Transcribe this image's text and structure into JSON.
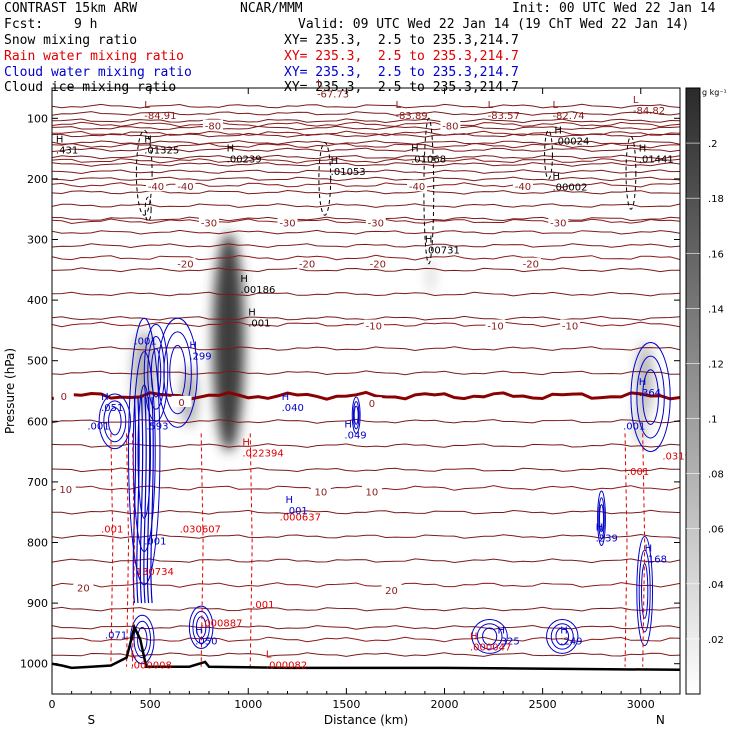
{
  "header": {
    "model": "CONTRAST 15km ARW",
    "org": "NCAR/MMM",
    "init": "Init: 00 UTC Wed 22 Jan 14",
    "fcst_label": "Fcst:",
    "fcst_value": "9 h",
    "valid": "Valid: 09 UTC Wed 22 Jan 14 (19 ChT Wed 22 Jan 14)"
  },
  "fields": [
    {
      "name": "Snow mixing ratio",
      "xy": "XY= 235.3,  2.5 to 235.3,214.7",
      "color": "#000000"
    },
    {
      "name": "Rain water mixing ratio",
      "xy": "XY= 235.3,  2.5 to 235.3,214.7",
      "color": "#e00000"
    },
    {
      "name": "Cloud water mixing ratio",
      "xy": "XY= 235.3,  2.5 to 235.3,214.7",
      "color": "#0000cc"
    },
    {
      "name": "Cloud ice mixing ratio",
      "xy": "XY= 235.3,  2.5 to 235.3,214.7",
      "color": "#000000"
    }
  ],
  "chart_data": {
    "type": "heatmap",
    "subtype": "vertical cross-section",
    "xlabel": "Distance (km)",
    "ylabel": "Pressure (hPa)",
    "xlim": [
      0,
      3200
    ],
    "ylim": [
      1050,
      50
    ],
    "x_ticks": [
      0,
      500,
      1000,
      1500,
      2000,
      2500,
      3000
    ],
    "y_ticks": [
      100,
      200,
      300,
      400,
      500,
      600,
      700,
      800,
      900,
      1000
    ],
    "x_end_labels": {
      "left": "S",
      "right": "N"
    },
    "colorbar": {
      "unit": "g kg⁻¹",
      "ticks": [
        0.2,
        0.18,
        0.16,
        0.14,
        0.12,
        0.1,
        0.08,
        0.06,
        0.04,
        0.02
      ],
      "tick_labels": [
        ".2",
        ".18",
        ".16",
        ".14",
        ".12",
        ".1",
        ".08",
        ".06",
        ".04",
        ".02"
      ],
      "range": [
        0,
        0.22
      ]
    },
    "shaded_blobs": [
      {
        "x": 900,
        "p": 470,
        "rx": 80,
        "rp": 180,
        "peak": 0.2
      },
      {
        "x": 470,
        "p": 520,
        "rx": 60,
        "rp": 70,
        "peak": 0.08
      },
      {
        "x": 700,
        "p": 560,
        "rx": 40,
        "rp": 50,
        "peak": 0.09
      },
      {
        "x": 3020,
        "p": 530,
        "rx": 40,
        "rp": 60,
        "peak": 0.08
      },
      {
        "x": 3000,
        "p": 600,
        "rx": 30,
        "rp": 40,
        "peak": 0.06
      },
      {
        "x": 1930,
        "p": 360,
        "rx": 20,
        "rp": 30,
        "peak": 0.04
      }
    ],
    "temperature_isotherms": [
      {
        "value": -80,
        "p": 110
      },
      {
        "value": -70,
        "p": 125
      },
      {
        "value": -60,
        "p": 145
      },
      {
        "value": -50,
        "p": 170
      },
      {
        "value": -40,
        "p": 210
      },
      {
        "value": -30,
        "p": 270
      },
      {
        "value": -20,
        "p": 330
      },
      {
        "value": -10,
        "p": 440
      },
      {
        "value": 0,
        "p": 558
      },
      {
        "value": 10,
        "p": 710
      },
      {
        "value": 20,
        "p": 870
      },
      {
        "value": 30,
        "p": 960
      }
    ],
    "dense_isotherms_p": [
      80,
      92,
      104,
      116,
      128,
      140,
      152,
      164,
      176,
      188,
      200,
      222,
      244,
      266,
      288,
      310,
      350,
      390,
      430,
      480,
      520,
      600,
      640,
      680,
      750,
      790,
      830,
      910,
      940,
      985
    ],
    "temperature_labels": [
      {
        "text": "-80",
        "x": 820,
        "p": 112
      },
      {
        "text": "-80",
        "x": 2030,
        "p": 112
      },
      {
        "text": "-40",
        "x": 530,
        "p": 212
      },
      {
        "text": "-40",
        "x": 680,
        "p": 212
      },
      {
        "text": "-40",
        "x": 1860,
        "p": 212
      },
      {
        "text": "-40",
        "x": 2400,
        "p": 212
      },
      {
        "text": "-30",
        "x": 800,
        "p": 272
      },
      {
        "text": "-30",
        "x": 1200,
        "p": 272
      },
      {
        "text": "-30",
        "x": 1650,
        "p": 272
      },
      {
        "text": "-30",
        "x": 2580,
        "p": 272
      },
      {
        "text": "-20",
        "x": 680,
        "p": 340
      },
      {
        "text": "-20",
        "x": 1300,
        "p": 340
      },
      {
        "text": "-20",
        "x": 1660,
        "p": 340
      },
      {
        "text": "-20",
        "x": 2440,
        "p": 340
      },
      {
        "text": "-10",
        "x": 1640,
        "p": 442
      },
      {
        "text": "-10",
        "x": 2260,
        "p": 442
      },
      {
        "text": "-10",
        "x": 2640,
        "p": 442
      },
      {
        "text": "0",
        "x": 60,
        "p": 558
      },
      {
        "text": "0",
        "x": 660,
        "p": 568
      },
      {
        "text": "0",
        "x": 1630,
        "p": 570
      },
      {
        "text": "10",
        "x": 70,
        "p": 712
      },
      {
        "text": "10",
        "x": 1370,
        "p": 716
      },
      {
        "text": "10",
        "x": 1630,
        "p": 716
      },
      {
        "text": "20",
        "x": 160,
        "p": 874
      },
      {
        "text": "20",
        "x": 1730,
        "p": 878
      }
    ],
    "extreme_labels": [
      {
        "mark": "L",
        "value": "-67.73",
        "x": 1350,
        "p": 62,
        "color": "#8b1a1a"
      },
      {
        "mark": "L",
        "value": "-84.91",
        "x": 470,
        "p": 98,
        "color": "#8b1a1a"
      },
      {
        "mark": "L",
        "value": "-83.89",
        "x": 1750,
        "p": 98,
        "color": "#8b1a1a"
      },
      {
        "mark": "L",
        "value": "-83.57",
        "x": 2220,
        "p": 98,
        "color": "#8b1a1a"
      },
      {
        "mark": "L",
        "value": "-82.74",
        "x": 2550,
        "p": 98,
        "color": "#8b1a1a"
      },
      {
        "mark": "L",
        "value": "-84.82",
        "x": 2960,
        "p": 90,
        "color": "#8b1a1a"
      },
      {
        "mark": "H",
        "value": ".01325",
        "x": 470,
        "p": 155,
        "color": "#000000"
      },
      {
        "mark": "H",
        "value": ".431",
        "x": 20,
        "p": 155,
        "color": "#000000"
      },
      {
        "mark": "H",
        "value": ".00239",
        "x": 890,
        "p": 170,
        "color": "#000000"
      },
      {
        "mark": "H",
        "value": ".01068",
        "x": 1830,
        "p": 170,
        "color": "#000000"
      },
      {
        "mark": "H",
        "value": ".00024",
        "x": 2560,
        "p": 140,
        "color": "#000000"
      },
      {
        "mark": "H",
        "value": ".01441",
        "x": 2990,
        "p": 170,
        "color": "#000000"
      },
      {
        "mark": "H",
        "value": ".01053",
        "x": 1420,
        "p": 190,
        "color": "#000000"
      },
      {
        "mark": "H",
        "value": ".00002",
        "x": 2550,
        "p": 216,
        "color": "#000000"
      },
      {
        "mark": "H",
        "value": ".00731",
        "x": 1900,
        "p": 320,
        "color": "#000000"
      },
      {
        "mark": "H",
        "value": ".00186",
        "x": 960,
        "p": 385,
        "color": "#000000"
      },
      {
        "mark": "H",
        "value": ".001",
        "x": 1000,
        "p": 440,
        "color": "#000000"
      },
      {
        "mark": "",
        "value": ".001",
        "x": 420,
        "p": 470,
        "color": "#0000cc"
      },
      {
        "mark": "H",
        "value": ".299",
        "x": 700,
        "p": 495,
        "color": "#0000cc"
      },
      {
        "mark": "H",
        "value": ".040",
        "x": 1170,
        "p": 580,
        "color": "#0000cc"
      },
      {
        "mark": "H",
        "value": ".049",
        "x": 1490,
        "p": 625,
        "color": "#0000cc"
      },
      {
        "mark": "H",
        "value": ".051",
        "x": 250,
        "p": 580,
        "color": "#0000cc"
      },
      {
        "mark": "",
        "value": ".593",
        "x": 480,
        "p": 610,
        "color": "#0000cc"
      },
      {
        "mark": "",
        "value": ".001",
        "x": 180,
        "p": 610,
        "color": "#0000cc"
      },
      {
        "mark": "H",
        "value": ".364",
        "x": 2990,
        "p": 555,
        "color": "#0000cc"
      },
      {
        "mark": "",
        "value": ".001",
        "x": 2910,
        "p": 610,
        "color": "#0000cc"
      },
      {
        "mark": "H",
        "value": ".022394",
        "x": 970,
        "p": 655,
        "color": "#e00000"
      },
      {
        "mark": "",
        "value": ".0319",
        "x": 3110,
        "p": 660,
        "color": "#e00000"
      },
      {
        "mark": "",
        "value": ".001",
        "x": 2930,
        "p": 685,
        "color": "#e00000"
      },
      {
        "mark": "H",
        "value": ".001",
        "x": 1190,
        "p": 750,
        "color": "#0000cc"
      },
      {
        "mark": "",
        "value": ".000637",
        "x": 1160,
        "p": 760,
        "color": "#e00000"
      },
      {
        "mark": "",
        "value": ".001",
        "x": 250,
        "p": 780,
        "color": "#e00000"
      },
      {
        "mark": "",
        "value": ".030607",
        "x": 650,
        "p": 780,
        "color": "#e00000"
      },
      {
        "mark": "",
        "value": ".001",
        "x": 470,
        "p": 800,
        "color": "#0000cc"
      },
      {
        "mark": "H",
        "value": ".239",
        "x": 2770,
        "p": 795,
        "color": "#0000cc"
      },
      {
        "mark": "H",
        "value": ".168",
        "x": 3020,
        "p": 830,
        "color": "#0000cc"
      },
      {
        "mark": "",
        "value": ".130734",
        "x": 410,
        "p": 850,
        "color": "#e00000"
      },
      {
        "mark": "",
        "value": ".000887",
        "x": 760,
        "p": 935,
        "color": "#e00000"
      },
      {
        "mark": "",
        "value": ".001",
        "x": 1020,
        "p": 905,
        "color": "#e00000"
      },
      {
        "mark": "",
        "value": ".071",
        "x": 270,
        "p": 955,
        "color": "#0000cc"
      },
      {
        "mark": "H",
        "value": ".050",
        "x": 730,
        "p": 965,
        "color": "#0000cc"
      },
      {
        "mark": "H",
        "value": ".325",
        "x": 2270,
        "p": 965,
        "color": "#0000cc"
      },
      {
        "mark": "H",
        "value": ".249",
        "x": 2590,
        "p": 965,
        "color": "#0000cc"
      },
      {
        "mark": "H",
        "value": ".000047",
        "x": 2130,
        "p": 975,
        "color": "#e00000"
      },
      {
        "mark": "L",
        "value": ".000008",
        "x": 400,
        "p": 1005,
        "color": "#e00000"
      },
      {
        "mark": "L",
        "value": ".000082",
        "x": 1090,
        "p": 1005,
        "color": "#e00000"
      }
    ],
    "cloud_water_contours": [
      {
        "x": 320,
        "p": 600,
        "rx": 80,
        "rp": 45
      },
      {
        "x": 470,
        "p": 650,
        "rx": 80,
        "rp": 220
      },
      {
        "x": 640,
        "p": 520,
        "rx": 100,
        "rp": 90
      },
      {
        "x": 530,
        "p": 520,
        "rx": 60,
        "rp": 80
      },
      {
        "x": 1550,
        "p": 590,
        "rx": 20,
        "rp": 30
      },
      {
        "x": 2800,
        "p": 760,
        "rx": 20,
        "rp": 45
      },
      {
        "x": 3050,
        "p": 560,
        "rx": 100,
        "rp": 90
      },
      {
        "x": 3020,
        "p": 880,
        "rx": 40,
        "rp": 90
      },
      {
        "x": 2230,
        "p": 955,
        "rx": 90,
        "rp": 28
      },
      {
        "x": 2600,
        "p": 955,
        "rx": 80,
        "rp": 28
      },
      {
        "x": 460,
        "p": 960,
        "rx": 60,
        "rp": 40
      },
      {
        "x": 760,
        "p": 940,
        "rx": 60,
        "rp": 35
      }
    ],
    "rain_dashed_columns_x": [
      300,
      380,
      410,
      760,
      1010,
      2920,
      3010
    ],
    "terrain_surface": [
      [
        0,
        1000
      ],
      [
        50,
        1003
      ],
      [
        100,
        1007
      ],
      [
        200,
        1005
      ],
      [
        300,
        1003
      ],
      [
        380,
        990
      ],
      [
        420,
        940
      ],
      [
        450,
        960
      ],
      [
        480,
        1005
      ],
      [
        700,
        1005
      ],
      [
        780,
        997
      ],
      [
        800,
        1005
      ],
      [
        1200,
        1007
      ],
      [
        2000,
        1007
      ],
      [
        3200,
        1010
      ]
    ]
  }
}
